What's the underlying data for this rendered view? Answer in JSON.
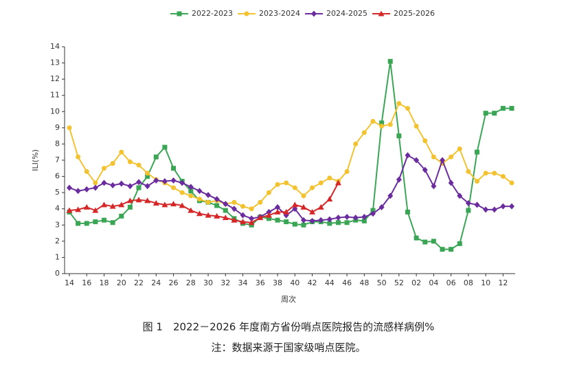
{
  "chart_data": {
    "type": "line",
    "caption": "图 1　2022－2026 年度南方省份哨点医院报告的流感样病例%",
    "note": "注：数据来源于国家级哨点医院。",
    "x_label": "周次",
    "y_label": "ILI(%)",
    "categories": [
      "14",
      null,
      "16",
      null,
      "18",
      null,
      "20",
      null,
      "22",
      null,
      "24",
      null,
      "26",
      null,
      "28",
      null,
      "30",
      null,
      "32",
      null,
      "34",
      null,
      "36",
      null,
      "38",
      null,
      "40",
      null,
      "42",
      null,
      "44",
      null,
      "46",
      null,
      "48",
      null,
      "50",
      null,
      "52",
      null,
      "02",
      null,
      "04",
      null,
      "06",
      null,
      "08",
      null,
      "10",
      null,
      "12",
      null
    ],
    "ylim": [
      0,
      14
    ],
    "yticks": [
      0,
      1,
      2,
      3,
      4,
      5,
      6,
      7,
      8,
      9,
      10,
      11,
      12,
      13,
      14
    ],
    "legend": "top",
    "series": [
      {
        "name": "2022-2023",
        "color": "#3aa655",
        "marker": "square",
        "values": [
          3.8,
          3.1,
          3.1,
          3.2,
          3.3,
          3.15,
          3.55,
          4.1,
          5.3,
          6.0,
          7.2,
          7.8,
          6.5,
          5.7,
          5.1,
          4.5,
          4.4,
          4.2,
          3.9,
          3.4,
          3.1,
          3.0,
          3.5,
          3.4,
          3.3,
          3.2,
          3.05,
          3.0,
          3.2,
          3.2,
          3.1,
          3.15,
          3.15,
          3.3,
          3.25,
          3.9,
          9.3,
          13.1,
          8.5,
          3.8,
          2.2,
          1.95,
          2.0,
          1.5,
          1.5,
          1.85,
          3.9,
          7.5,
          9.9,
          9.9,
          10.2,
          10.2
        ]
      },
      {
        "name": "2023-2024",
        "color": "#f2c230",
        "marker": "circle",
        "values": [
          9.0,
          7.2,
          6.3,
          5.6,
          6.5,
          6.8,
          7.5,
          6.9,
          6.7,
          6.2,
          5.8,
          5.6,
          5.3,
          5.0,
          4.8,
          4.6,
          4.4,
          4.5,
          4.3,
          4.4,
          4.15,
          4.0,
          4.4,
          5.0,
          5.5,
          5.6,
          5.3,
          4.8,
          5.3,
          5.6,
          5.9,
          5.7,
          6.3,
          8.0,
          8.7,
          9.4,
          9.1,
          9.2,
          10.5,
          10.2,
          9.1,
          8.2,
          7.2,
          6.8,
          7.2,
          7.7,
          6.3,
          5.7,
          6.2,
          6.2,
          6.0,
          5.6
        ]
      },
      {
        "name": "2024-2025",
        "color": "#6a2c9e",
        "marker": "diamond",
        "values": [
          5.3,
          5.1,
          5.2,
          5.3,
          5.6,
          5.45,
          5.55,
          5.4,
          5.65,
          5.4,
          5.75,
          5.7,
          5.75,
          5.6,
          5.35,
          5.1,
          4.85,
          4.6,
          4.3,
          4.0,
          3.6,
          3.4,
          3.5,
          3.8,
          4.1,
          3.6,
          4.0,
          3.3,
          3.25,
          3.3,
          3.35,
          3.45,
          3.5,
          3.45,
          3.5,
          3.7,
          4.1,
          4.8,
          5.8,
          7.3,
          7.0,
          6.4,
          5.4,
          7.0,
          5.6,
          4.8,
          4.35,
          4.25,
          3.95,
          3.95,
          4.15,
          4.15
        ]
      },
      {
        "name": "2025-2026",
        "color": "#d62728",
        "marker": "triangle",
        "values": [
          3.9,
          3.95,
          4.1,
          3.9,
          4.25,
          4.15,
          4.25,
          4.5,
          4.55,
          4.5,
          4.35,
          4.25,
          4.3,
          4.2,
          3.9,
          3.7,
          3.6,
          3.55,
          3.45,
          3.3,
          3.2,
          3.15,
          3.45,
          3.6,
          3.8,
          3.8,
          4.25,
          4.1,
          3.8,
          4.1,
          4.6,
          5.6,
          null,
          null,
          null,
          null,
          null,
          null,
          null,
          null,
          null,
          null,
          null,
          null,
          null,
          null,
          null,
          null,
          null,
          null,
          null,
          null
        ]
      }
    ]
  }
}
